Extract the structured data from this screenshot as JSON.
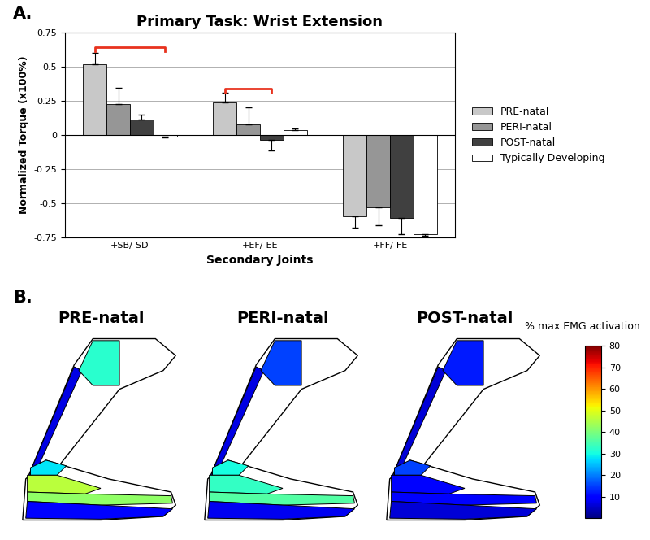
{
  "chart_data": [
    {
      "type": "bar",
      "label": "A.",
      "title": "Primary Task: Wrist Extension",
      "categories": [
        "+SB/-SD",
        "+EF/-EE",
        "+FF/-FE"
      ],
      "x_label": "Secondary Joints",
      "y_label": "Normalized Torque (x100%)",
      "series": [
        {
          "name": "PRE-natal",
          "color": "#c8c8c8",
          "values": [
            0.52,
            0.24,
            -0.595
          ],
          "errors": [
            0.08,
            0.07,
            0.08
          ]
        },
        {
          "name": "PERI-natal",
          "color": "#969696",
          "values": [
            0.225,
            0.075,
            -0.53
          ],
          "errors": [
            0.12,
            0.13,
            0.13
          ]
        },
        {
          "name": "POST-natal",
          "color": "#404040",
          "values": [
            0.11,
            -0.035,
            -0.605
          ],
          "errors": [
            0.04,
            0.08,
            0.12
          ]
        },
        {
          "name": "Typically Developing",
          "color": "#ffffff",
          "values": [
            -0.01,
            0.035,
            -0.725
          ],
          "errors": [
            0.005,
            0.01,
            0.015
          ]
        }
      ],
      "annotations": [
        {
          "category": "+SB/-SD",
          "series": [
            "PRE-natal",
            "Typically Developing"
          ],
          "y": 0.64,
          "color": "#e8321e"
        },
        {
          "category": "+EF/-EE",
          "series": [
            "PRE-natal",
            "POST-natal"
          ],
          "y": 0.34,
          "color": "#e8321e"
        }
      ],
      "ylim": [
        -0.75,
        0.75
      ],
      "yticks": [
        -0.75,
        -0.5,
        -0.25,
        0,
        0.25,
        0.5,
        0.75
      ],
      "grid": true,
      "legend": "right"
    },
    {
      "type": "diagram",
      "label": "B.",
      "panels": [
        {
          "title": "PRE-natal",
          "activation": [
            7,
            32,
            28,
            46,
            42,
            10
          ]
        },
        {
          "title": "PERI-natal",
          "activation": [
            7,
            15,
            30,
            33,
            36,
            8
          ]
        },
        {
          "title": "POST-natal",
          "activation": [
            6,
            12,
            15,
            10,
            10,
            6
          ]
        }
      ],
      "colorbar": {
        "label": "% max EMG activation",
        "range": [
          0,
          80
        ],
        "ticks": [
          10,
          20,
          30,
          40,
          50,
          60,
          70,
          80
        ]
      }
    }
  ]
}
